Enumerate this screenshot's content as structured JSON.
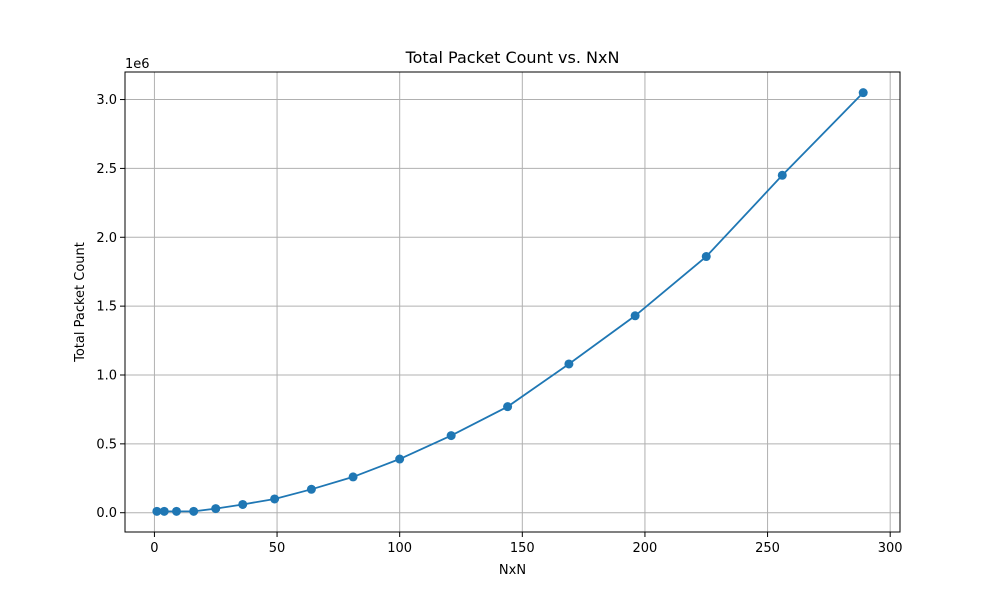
{
  "chart_data": {
    "type": "line",
    "title": "Total Packet Count vs. NxN",
    "xlabel": "NxN",
    "ylabel": "Total Packet Count",
    "y_offset_label": "1e6",
    "xlim": [
      -12,
      304
    ],
    "ylim": [
      -0.14,
      3.2
    ],
    "x_ticks": [
      0,
      50,
      100,
      150,
      200,
      250,
      300
    ],
    "y_ticks": [
      0.0,
      0.5,
      1.0,
      1.5,
      2.0,
      2.5,
      3.0
    ],
    "x_tick_labels": [
      "0",
      "50",
      "100",
      "150",
      "200",
      "250",
      "300"
    ],
    "y_tick_labels": [
      "0.0",
      "0.5",
      "1.0",
      "1.5",
      "2.0",
      "2.5",
      "3.0"
    ],
    "grid": true,
    "color": "#1f77b4",
    "marker": "circle",
    "series": [
      {
        "x": [
          1,
          4,
          9,
          16,
          25,
          36,
          49,
          64,
          81,
          100,
          121,
          144,
          169,
          196,
          225,
          256,
          289
        ],
        "y": [
          0.01,
          0.01,
          0.01,
          0.01,
          0.03,
          0.06,
          0.1,
          0.17,
          0.26,
          0.39,
          0.56,
          0.77,
          1.08,
          1.43,
          1.86,
          2.45,
          3.05
        ]
      }
    ]
  }
}
